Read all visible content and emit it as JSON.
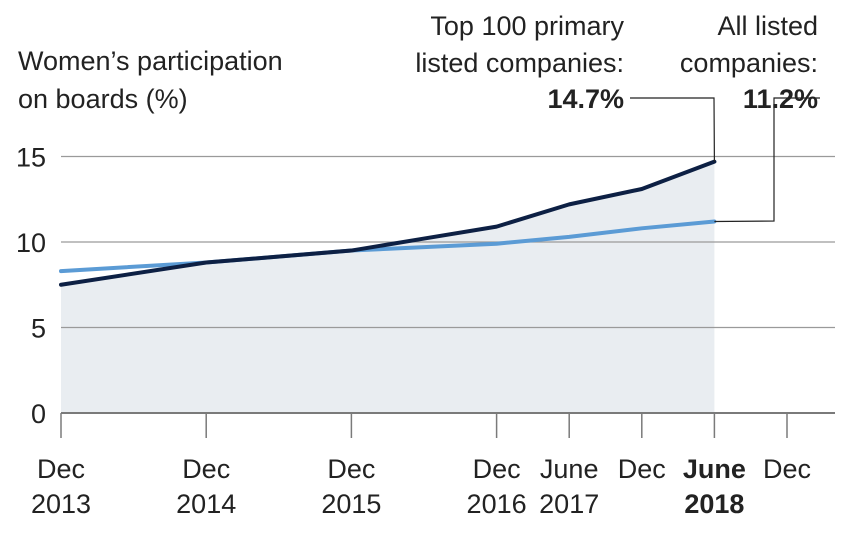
{
  "chart_data": {
    "type": "line",
    "ylabel_lines": [
      "Women’s participation",
      "on boards (%)"
    ],
    "ylim": [
      0,
      15
    ],
    "yticks": [
      0,
      5,
      10,
      15
    ],
    "x_ticks": [
      {
        "x": 0,
        "line1": "Dec",
        "line2": "2013",
        "bold": false
      },
      {
        "x": 12,
        "line1": "Dec",
        "line2": "2014",
        "bold": false
      },
      {
        "x": 24,
        "line1": "Dec",
        "line2": "2015",
        "bold": false
      },
      {
        "x": 36,
        "line1": "Dec",
        "line2": "2016",
        "bold": false
      },
      {
        "x": 42,
        "line1": "June",
        "line2": "2017",
        "bold": false
      },
      {
        "x": 48,
        "line1": "Dec",
        "line2": "",
        "bold": false
      },
      {
        "x": 54,
        "line1": "June",
        "line2": "2018",
        "bold": true
      },
      {
        "x": 60,
        "line1": "Dec",
        "line2": "",
        "bold": false
      }
    ],
    "series": [
      {
        "name": "Top 100 primary listed companies:",
        "label_lines": [
          "Top 100 primary",
          "listed companies:"
        ],
        "end_value_label": "14.7%",
        "color": "#0d2044",
        "points": [
          [
            0,
            7.5
          ],
          [
            12,
            8.8
          ],
          [
            24,
            9.5
          ],
          [
            30,
            10.2
          ],
          [
            36,
            10.9
          ],
          [
            42,
            12.2
          ],
          [
            48,
            13.1
          ],
          [
            54,
            14.7
          ]
        ]
      },
      {
        "name": "All listed companies:",
        "label_lines": [
          "All listed",
          "companies:"
        ],
        "end_value_label": "11.2%",
        "color": "#5b9bd5",
        "points": [
          [
            0,
            8.3
          ],
          [
            12,
            8.8
          ],
          [
            24,
            9.5
          ],
          [
            36,
            9.9
          ],
          [
            42,
            10.3
          ],
          [
            48,
            10.8
          ],
          [
            54,
            11.2
          ]
        ]
      }
    ],
    "grid": true,
    "area_fill_color": "#e9edf1",
    "grid_color": "#9a9a9a"
  }
}
